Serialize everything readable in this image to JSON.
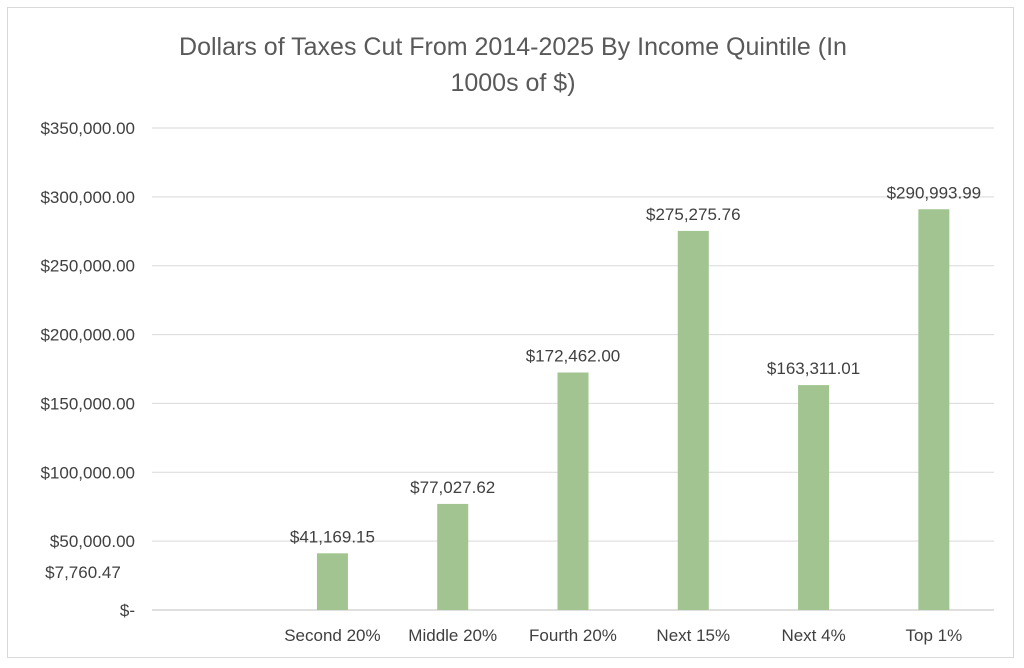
{
  "chart_data": {
    "type": "bar",
    "title_lines": [
      "Dollars of Taxes Cut From 2014-2025 By Income Quintile (In",
      "1000s of $)"
    ],
    "title": "Dollars of Taxes Cut From 2014-2025 By Income Quintile (In 1000s of $)",
    "xlabel": "",
    "ylabel": "",
    "categories": [
      "",
      "Second 20%",
      "Middle 20%",
      "Fourth 20%",
      "Next 15%",
      "Next 4%",
      "Top 1%"
    ],
    "values": [
      7760.47,
      41169.15,
      77027.62,
      172462.0,
      275275.76,
      163311.01,
      290993.99
    ],
    "data_labels": [
      "$7,760.47",
      "$41,169.15",
      "$77,027.62",
      "$172,462.00",
      "$275,275.76",
      "$163,311.01",
      "$290,993.99"
    ],
    "ylim": [
      0,
      350000
    ],
    "y_ticks": [
      0,
      50000,
      100000,
      150000,
      200000,
      250000,
      300000,
      350000
    ],
    "y_tick_labels": [
      "$-",
      "$50,000.00",
      "$100,000.00",
      "$150,000.00",
      "$200,000.00",
      "$250,000.00",
      "$300,000.00",
      "$350,000.00"
    ],
    "grid": true,
    "legend": "none",
    "bar_color": "#a1c490"
  }
}
